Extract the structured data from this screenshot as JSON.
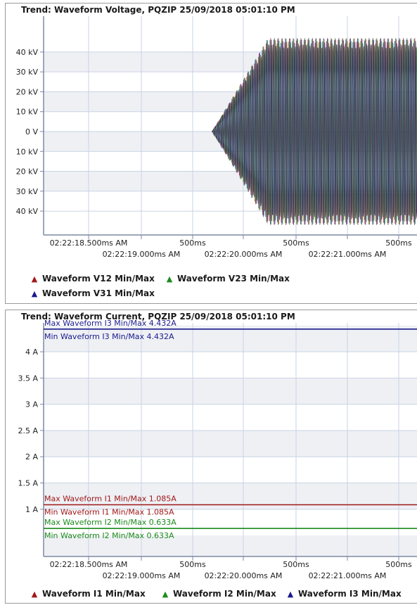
{
  "charts": [
    {
      "title": "Trend: Waveform Voltage, PQZIP 25/09/2018 05:01:10 PM",
      "legend": [
        {
          "label": "Waveform V12 Min/Max",
          "color": "#a01818"
        },
        {
          "label": "Waveform V23 Min/Max",
          "color": "#1b8a1b"
        },
        {
          "label": "Waveform V31 Min/Max",
          "color": "#1a1a8c"
        }
      ],
      "x_ticks_row1": [
        "02:22:18.500ms AM",
        "500ms",
        "500ms",
        "500ms"
      ],
      "x_ticks_row2": [
        "02:22:19.000ms AM",
        "02:22:20.000ms AM",
        "02:22:21.000ms AM"
      ],
      "y_tick_labels": [
        "40 kV",
        "30 kV",
        "20 kV",
        "10 kV",
        "0 V",
        "10 kV",
        "20 kV",
        "30 kV",
        "40 kV"
      ]
    },
    {
      "title": "Trend: Waveform Current, PQZIP 25/09/2018 05:01:10 PM",
      "legend": [
        {
          "label": "Waveform I1 Min/Max",
          "color": "#a01818"
        },
        {
          "label": "Waveform I2 Min/Max",
          "color": "#1b8a1b"
        },
        {
          "label": "Waveform I3 Min/Max",
          "color": "#1a1a8c"
        }
      ],
      "x_ticks_row1": [
        "02:22:18.500ms AM",
        "500ms",
        "500ms",
        "500ms"
      ],
      "x_ticks_row2": [
        "02:22:19.000ms AM",
        "02:22:20.000ms AM",
        "02:22:21.000ms AM"
      ],
      "y_tick_labels": [
        "4 A",
        "3.5 A",
        "3 A",
        "2.5 A",
        "2 A",
        "1.5 A",
        "1 A"
      ],
      "annotations": [
        {
          "text": "Max Waveform I3 Min/Max 4.432A",
          "color": "#1a1a8c"
        },
        {
          "text": "Min Waveform I3 Min/Max 4.432A",
          "color": "#1a1a8c"
        },
        {
          "text": "Max Waveform I1 Min/Max 1.085A",
          "color": "#a01818"
        },
        {
          "text": "Min Waveform I1 Min/Max 1.085A",
          "color": "#a01818"
        },
        {
          "text": "Max Waveform I2 Min/Max 0.633A",
          "color": "#1b8a1b"
        },
        {
          "text": "Min Waveform I2 Min/Max 0.633A",
          "color": "#1b8a1b"
        }
      ]
    }
  ],
  "chart_data": [
    {
      "type": "line",
      "title": "Trend: Waveform Voltage, PQZIP 25/09/2018 05:01:10 PM",
      "xlabel": "",
      "ylabel": "",
      "y_ticks": [
        40,
        30,
        20,
        10,
        0,
        -10,
        -20,
        -30,
        -40
      ],
      "y_unit": "kV",
      "ylim": [
        -52,
        58
      ],
      "envelope": {
        "start_x": 0.45,
        "ramp_end_x": 0.6,
        "peak_kv": 47
      },
      "series": [
        {
          "name": "Waveform V12 Min/Max",
          "color": "#a01818"
        },
        {
          "name": "Waveform V23 Min/Max",
          "color": "#1b8a1b"
        },
        {
          "name": "Waveform V31 Min/Max",
          "color": "#1a1a8c"
        }
      ],
      "grid": true,
      "legend": "bottom"
    },
    {
      "type": "line",
      "title": "Trend: Waveform Current, PQZIP 25/09/2018 05:01:10 PM",
      "xlabel": "",
      "ylabel": "",
      "y_ticks": [
        4,
        3.5,
        3,
        2.5,
        2,
        1.5,
        1
      ],
      "y_unit": "A",
      "ylim": [
        0.1,
        4.55
      ],
      "series": [
        {
          "name": "Waveform I1 Min/Max",
          "color": "#a01818",
          "min": 1.085,
          "max": 1.085
        },
        {
          "name": "Waveform I2 Min/Max",
          "color": "#1b8a1b",
          "min": 0.633,
          "max": 0.633
        },
        {
          "name": "Waveform I3 Min/Max",
          "color": "#1a1a8c",
          "min": 4.432,
          "max": 4.432
        }
      ],
      "grid": true,
      "legend": "bottom"
    }
  ]
}
